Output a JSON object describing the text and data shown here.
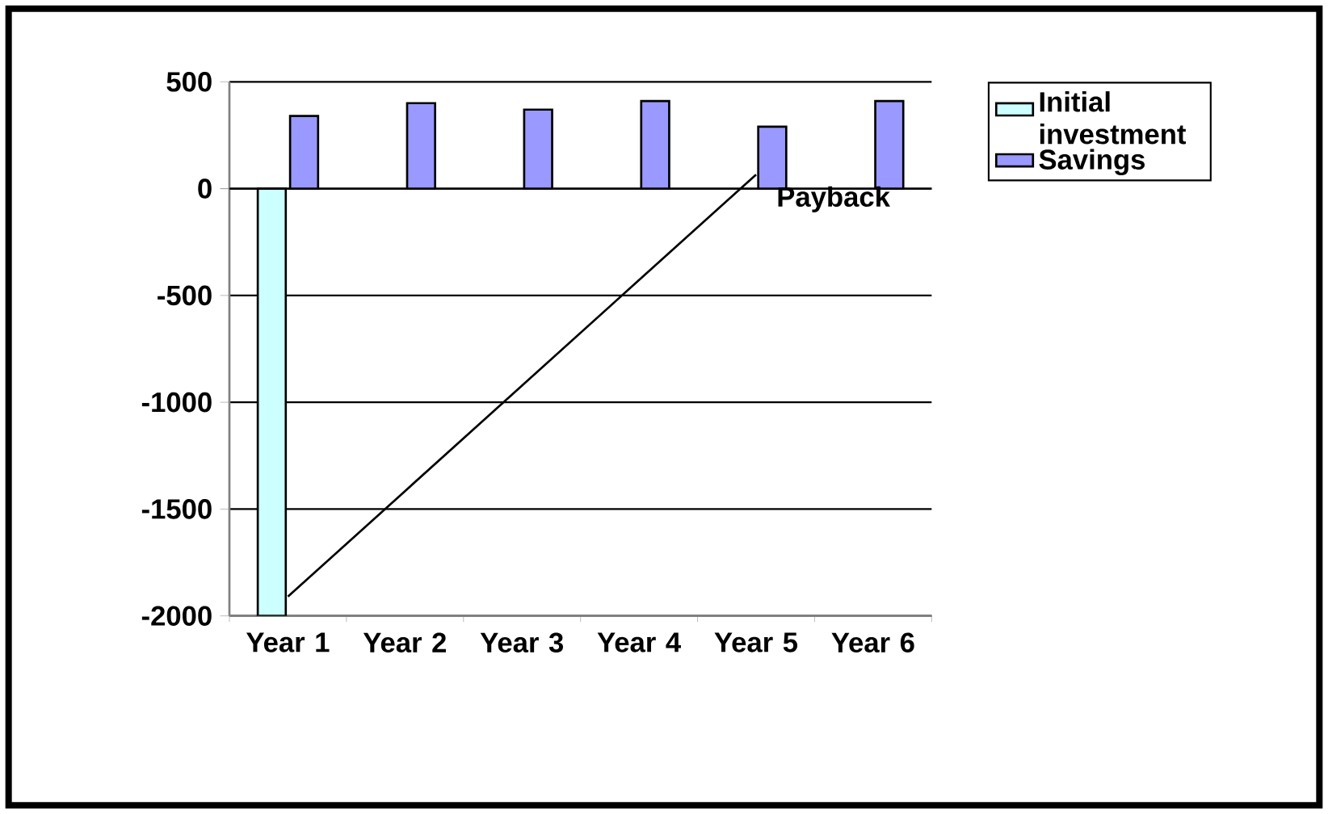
{
  "chart_data": {
    "type": "bar",
    "categories": [
      "Year 1",
      "Year 2",
      "Year 3",
      "Year 4",
      "Year 5",
      "Year 6"
    ],
    "series": [
      {
        "name": "Initial investment",
        "color": "#ccffff",
        "values": [
          -2000,
          null,
          null,
          null,
          null,
          null
        ]
      },
      {
        "name": "Savings",
        "color": "#9999ff",
        "values": [
          340,
          400,
          370,
          410,
          290,
          410
        ]
      },
      {
        "type": "line",
        "color": "#000000",
        "values": [
          -1910,
          -1416,
          -922,
          -428,
          66,
          null
        ]
      }
    ],
    "ylim": [
      -2000,
      500
    ],
    "yticks": [
      -2000,
      -1500,
      -1000,
      -500,
      0,
      500
    ],
    "grid": "y",
    "legend": "right",
    "marker": "none",
    "annotations": [
      "Payback"
    ]
  }
}
